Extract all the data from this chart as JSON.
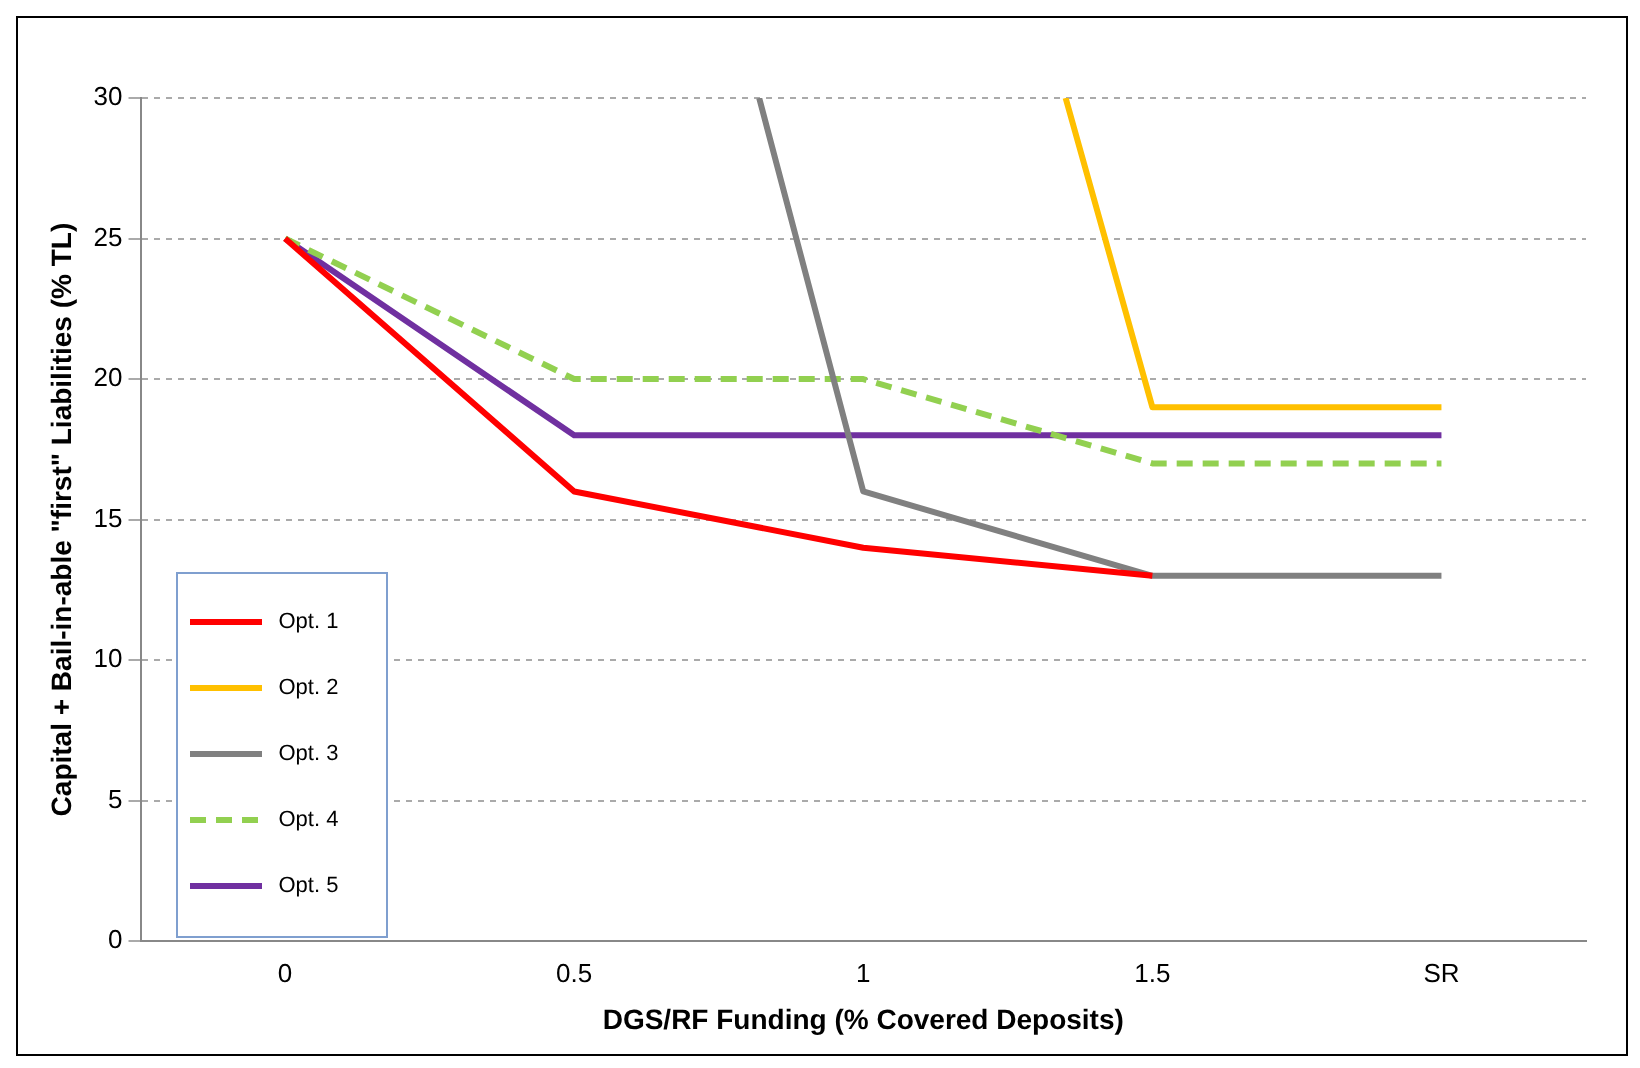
{
  "chart_data": {
    "type": "line",
    "xlabel": "DGS/RF Funding (% Covered Deposits)",
    "ylabel": "Capital + Bail-in-able \"first\" Liabilities (% TL)",
    "xlim": [
      -0.25,
      2.25
    ],
    "xticks": [
      0,
      0.5,
      1,
      1.5,
      {
        "value": 2,
        "label": "SR"
      }
    ],
    "ylim": [
      0,
      30
    ],
    "yticks": [
      0,
      5,
      10,
      15,
      20,
      25,
      30
    ],
    "grid": "y",
    "legend": "bottom left",
    "marker": "none",
    "series": [
      {
        "name": "Opt. 1",
        "color": "#ff0000",
        "x": [
          0,
          0.5,
          1,
          1.5
        ],
        "values": [
          25,
          16,
          14,
          13
        ],
        "line_style": "solid"
      },
      {
        "name": "Opt. 2",
        "color": "#ffc000",
        "x": [
          1.35,
          1.5,
          2
        ],
        "values": [
          30,
          19,
          19
        ],
        "line_style": "solid"
      },
      {
        "name": "Opt. 3",
        "color": "#808080",
        "x": [
          0.82,
          1,
          1.5,
          2
        ],
        "values": [
          30,
          16,
          13,
          13
        ],
        "line_style": "solid"
      },
      {
        "name": "Opt. 4",
        "color": "#92d050",
        "x": [
          0,
          0.5,
          1,
          1.5,
          2
        ],
        "values": [
          25,
          20,
          20,
          17,
          17
        ],
        "line_style": "dashed"
      },
      {
        "name": "Opt. 5",
        "color": "#7030a0",
        "x": [
          0,
          0.5,
          1,
          1.5,
          2
        ],
        "values": [
          25,
          18,
          18,
          18,
          18
        ],
        "line_style": "solid"
      }
    ]
  }
}
